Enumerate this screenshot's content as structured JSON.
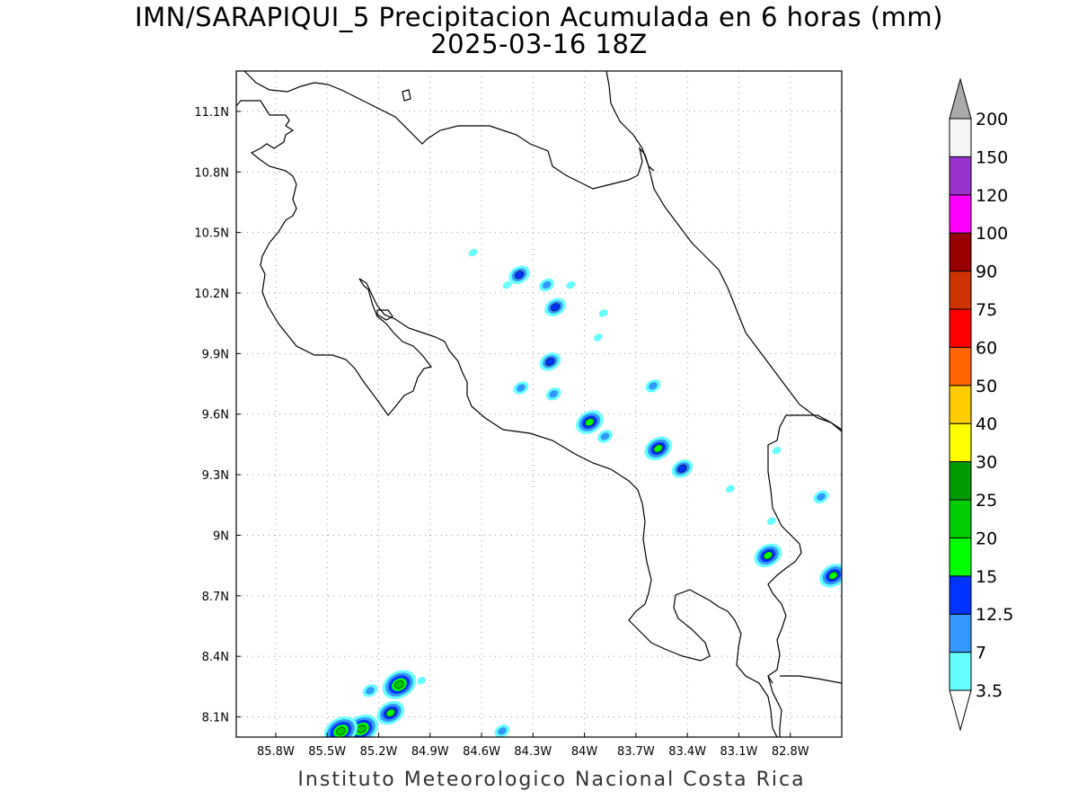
{
  "title": {
    "line1": "IMN/SARAPIQUI_5 Precipitacion Acumulada en 6 horas (mm)",
    "line2": "2025-03-16 18Z"
  },
  "footer": "Instituto Meteorologico Nacional Costa Rica",
  "map": {
    "lon_range": [
      -86.03,
      -82.5
    ],
    "lat_range": [
      8.0,
      11.3
    ],
    "lon_ticks": [
      "85.8W",
      "85.5W",
      "85.2W",
      "84.9W",
      "84.6W",
      "84.3W",
      "84W",
      "83.7W",
      "83.4W",
      "83.1W",
      "82.8W"
    ],
    "lat_ticks": [
      "8.1N",
      "8.4N",
      "8.7N",
      "9N",
      "9.3N",
      "9.6N",
      "9.9N",
      "10.2N",
      "10.5N",
      "10.8N",
      "11.1N"
    ],
    "gridlines": "dotted"
  },
  "colorbar": {
    "levels": [
      "3.5",
      "7",
      "12.5",
      "15",
      "20",
      "25",
      "30",
      "40",
      "50",
      "60",
      "75",
      "90",
      "100",
      "120",
      "150",
      "200"
    ],
    "colors": [
      "#66ffff",
      "#3399ff",
      "#0033ff",
      "#00ff00",
      "#00cc00",
      "#009900",
      "#ffff00",
      "#ffcc00",
      "#ff6600",
      "#ff0000",
      "#cc3300",
      "#990000",
      "#ff00ff",
      "#9933cc",
      "#f5f5f5"
    ],
    "over_color": "#aaaaaa",
    "under_color": "#ffffff"
  },
  "rain_cells": [
    {
      "lon": -84.38,
      "lat": 10.29,
      "level": 2
    },
    {
      "lon": -84.17,
      "lat": 10.13,
      "level": 2
    },
    {
      "lon": -84.22,
      "lat": 10.24,
      "level": 1
    },
    {
      "lon": -84.08,
      "lat": 10.24,
      "level": 0
    },
    {
      "lon": -84.45,
      "lat": 10.24,
      "level": 0
    },
    {
      "lon": -84.2,
      "lat": 9.86,
      "level": 2
    },
    {
      "lon": -84.37,
      "lat": 9.73,
      "level": 1
    },
    {
      "lon": -84.18,
      "lat": 9.7,
      "level": 1
    },
    {
      "lon": -83.97,
      "lat": 9.56,
      "level": 3
    },
    {
      "lon": -83.88,
      "lat": 9.49,
      "level": 1
    },
    {
      "lon": -83.57,
      "lat": 9.43,
      "level": 3
    },
    {
      "lon": -83.43,
      "lat": 9.33,
      "level": 2
    },
    {
      "lon": -83.6,
      "lat": 9.74,
      "level": 1
    },
    {
      "lon": -83.89,
      "lat": 10.1,
      "level": 0
    },
    {
      "lon": -83.92,
      "lat": 9.98,
      "level": 0
    },
    {
      "lon": -83.15,
      "lat": 9.23,
      "level": 0
    },
    {
      "lon": -82.93,
      "lat": 8.9,
      "level": 3
    },
    {
      "lon": -82.91,
      "lat": 9.07,
      "level": 0
    },
    {
      "lon": -82.88,
      "lat": 9.42,
      "level": 0
    },
    {
      "lon": -82.62,
      "lat": 9.19,
      "level": 1
    },
    {
      "lon": -82.55,
      "lat": 8.8,
      "level": 3
    },
    {
      "lon": -85.08,
      "lat": 8.26,
      "level": 4
    },
    {
      "lon": -85.13,
      "lat": 8.12,
      "level": 3
    },
    {
      "lon": -85.3,
      "lat": 8.04,
      "level": 4
    },
    {
      "lon": -85.42,
      "lat": 8.03,
      "level": 4
    },
    {
      "lon": -85.25,
      "lat": 8.23,
      "level": 1
    },
    {
      "lon": -84.95,
      "lat": 8.28,
      "level": 0
    },
    {
      "lon": -84.48,
      "lat": 8.03,
      "level": 1
    },
    {
      "lon": -84.65,
      "lat": 10.4,
      "level": 0
    }
  ]
}
